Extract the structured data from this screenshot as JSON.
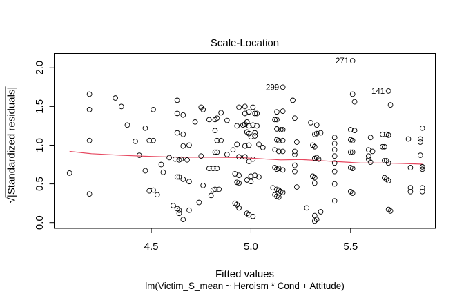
{
  "figure": {
    "title": "Scale-Location",
    "xlabel": "Fitted values",
    "xlabel_sub": "lm(Victim_S_mean ~ Heroism * Cond + Attitude)",
    "ylabel_radical": "√",
    "ylabel_text": "|Standardized residuals|"
  },
  "chart_data": {
    "type": "scatter",
    "title": "Scale-Location",
    "xlabel": "Fitted values",
    "model_caption": "lm(Victim_S_mean ~ Heroism * Cond + Attitude)",
    "ylabel": "√|Standardized residuals|",
    "grid": false,
    "legend": "none",
    "x_range": [
      4.013,
      5.925
    ],
    "y_range": [
      -0.074,
      2.185
    ],
    "x_ticks": {
      "values": [
        4.5,
        5.0,
        5.5
      ],
      "labels": [
        "4.5",
        "5.0",
        "5.5"
      ]
    },
    "y_ticks": {
      "values": [
        0.0,
        0.5,
        1.0,
        1.5,
        2.0
      ],
      "labels": [
        "0.0",
        "0.5",
        "1.0",
        "1.5",
        "2.0"
      ]
    },
    "point_style": {
      "shape": "open-circle",
      "color": "#000000"
    },
    "annotations": [
      {
        "text": "271",
        "x": 5.51,
        "y": 2.09
      },
      {
        "text": "299",
        "x": 5.16,
        "y": 1.75
      },
      {
        "text": "141",
        "x": 5.69,
        "y": 1.7
      }
    ],
    "smooth_line": {
      "name": "lowess smooth",
      "color": "#e6475f",
      "points": [
        [
          4.09,
          0.92
        ],
        [
          4.2,
          0.89
        ],
        [
          4.35,
          0.87
        ],
        [
          4.5,
          0.855
        ],
        [
          4.65,
          0.845
        ],
        [
          4.8,
          0.845
        ],
        [
          4.95,
          0.84
        ],
        [
          5.05,
          0.825
        ],
        [
          5.15,
          0.81
        ],
        [
          5.25,
          0.815
        ],
        [
          5.35,
          0.8
        ],
        [
          5.45,
          0.785
        ],
        [
          5.55,
          0.77
        ],
        [
          5.65,
          0.77
        ],
        [
          5.75,
          0.765
        ],
        [
          5.86,
          0.755
        ]
      ]
    },
    "points": [
      [
        4.19,
        1.66
      ],
      [
        4.32,
        1.61
      ],
      [
        4.35,
        1.5
      ],
      [
        4.19,
        1.46
      ],
      [
        4.38,
        1.26
      ],
      [
        4.47,
        1.22
      ],
      [
        4.19,
        1.06
      ],
      [
        4.42,
        1.05
      ],
      [
        4.49,
        1.06
      ],
      [
        4.44,
        0.87
      ],
      [
        4.09,
        0.64
      ],
      [
        4.47,
        0.67
      ],
      [
        4.19,
        0.37
      ],
      [
        4.49,
        0.41
      ],
      [
        4.63,
        1.58
      ],
      [
        4.51,
        1.46
      ],
      [
        4.63,
        1.41
      ],
      [
        4.66,
        1.39
      ],
      [
        4.75,
        1.49
      ],
      [
        4.76,
        1.46
      ],
      [
        4.72,
        1.3
      ],
      [
        4.79,
        1.33
      ],
      [
        4.82,
        1.33
      ],
      [
        4.83,
        1.35
      ],
      [
        4.85,
        1.42
      ],
      [
        4.88,
        1.32
      ],
      [
        4.94,
        1.49
      ],
      [
        4.97,
        1.5
      ],
      [
        4.97,
        1.41
      ],
      [
        4.93,
        1.25
      ],
      [
        4.96,
        1.26
      ],
      [
        4.97,
        1.27
      ],
      [
        4.63,
        1.16
      ],
      [
        4.66,
        1.14
      ],
      [
        4.82,
        1.19
      ],
      [
        4.98,
        1.17
      ],
      [
        4.83,
        1.06
      ],
      [
        4.51,
        1.06
      ],
      [
        4.85,
        1.06
      ],
      [
        4.66,
        0.99
      ],
      [
        4.69,
        1.0
      ],
      [
        4.93,
        1.01
      ],
      [
        4.97,
        0.99
      ],
      [
        4.82,
        0.91
      ],
      [
        4.83,
        0.91
      ],
      [
        4.88,
        0.88
      ],
      [
        4.91,
        0.94
      ],
      [
        4.94,
        0.85
      ],
      [
        4.97,
        0.85
      ],
      [
        4.59,
        0.84
      ],
      [
        4.62,
        0.82
      ],
      [
        4.64,
        0.81
      ],
      [
        4.65,
        0.82
      ],
      [
        4.68,
        0.81
      ],
      [
        4.75,
        0.86
      ],
      [
        4.55,
        0.75
      ],
      [
        4.56,
        0.65
      ],
      [
        4.79,
        0.7
      ],
      [
        4.81,
        0.7
      ],
      [
        4.83,
        0.7
      ],
      [
        4.92,
        0.63
      ],
      [
        4.94,
        0.61
      ],
      [
        4.63,
        0.59
      ],
      [
        4.64,
        0.59
      ],
      [
        4.66,
        0.56
      ],
      [
        4.69,
        0.53
      ],
      [
        4.93,
        0.52
      ],
      [
        4.94,
        0.51
      ],
      [
        4.76,
        0.48
      ],
      [
        4.51,
        0.42
      ],
      [
        4.53,
        0.36
      ],
      [
        4.81,
        0.42
      ],
      [
        4.82,
        0.43
      ],
      [
        4.84,
        0.43
      ],
      [
        4.8,
        0.35
      ],
      [
        4.74,
        0.26
      ],
      [
        4.61,
        0.22
      ],
      [
        4.63,
        0.18
      ],
      [
        4.64,
        0.16
      ],
      [
        4.64,
        0.12
      ],
      [
        4.66,
        0.04
      ],
      [
        4.69,
        0.16
      ],
      [
        4.92,
        0.25
      ],
      [
        4.93,
        0.23
      ],
      [
        4.94,
        0.19
      ],
      [
        4.98,
        0.12
      ],
      [
        5.21,
        1.58
      ],
      [
        5.01,
        1.49
      ],
      [
        4.99,
        1.43
      ],
      [
        5.02,
        1.41
      ],
      [
        5.03,
        1.41
      ],
      [
        5.13,
        1.43
      ],
      [
        5.16,
        1.44
      ],
      [
        5.22,
        1.35
      ],
      [
        5.12,
        1.33
      ],
      [
        5.13,
        1.33
      ],
      [
        4.98,
        1.3
      ],
      [
        4.99,
        1.25
      ],
      [
        5.01,
        1.26
      ],
      [
        5.03,
        1.25
      ],
      [
        5.3,
        1.29
      ],
      [
        5.33,
        1.26
      ],
      [
        5.13,
        1.21
      ],
      [
        5.15,
        1.2
      ],
      [
        5.16,
        1.2
      ],
      [
        4.99,
        1.15
      ],
      [
        5.02,
        1.16
      ],
      [
        5.32,
        1.14
      ],
      [
        5.33,
        1.15
      ],
      [
        5.35,
        1.16
      ],
      [
        5.42,
        1.1
      ],
      [
        5.13,
        1.07
      ],
      [
        5.14,
        1.06
      ],
      [
        5.16,
        1.06
      ],
      [
        5.23,
        1.04
      ],
      [
        5.0,
        1.11
      ],
      [
        5.02,
        1.12
      ],
      [
        4.99,
        1.0
      ],
      [
        5.04,
        1.01
      ],
      [
        5.06,
        0.97
      ],
      [
        5.12,
        0.94
      ],
      [
        5.14,
        0.92
      ],
      [
        5.16,
        0.92
      ],
      [
        5.22,
        0.92
      ],
      [
        5.22,
        0.88
      ],
      [
        5.31,
        1.0
      ],
      [
        5.32,
        0.98
      ],
      [
        5.42,
        1.02
      ],
      [
        5.42,
        0.94
      ],
      [
        5.42,
        0.86
      ],
      [
        5.42,
        0.77
      ],
      [
        5.42,
        0.66
      ],
      [
        5.42,
        0.5
      ],
      [
        4.99,
        0.79
      ],
      [
        5.01,
        0.82
      ],
      [
        5.32,
        0.83
      ],
      [
        5.33,
        0.84
      ],
      [
        5.34,
        0.82
      ],
      [
        5.12,
        0.71
      ],
      [
        5.13,
        0.69
      ],
      [
        5.14,
        0.7
      ],
      [
        5.16,
        0.68
      ],
      [
        5.22,
        0.74
      ],
      [
        5.22,
        0.66
      ],
      [
        5.0,
        0.6
      ],
      [
        5.02,
        0.61
      ],
      [
        5.04,
        0.59
      ],
      [
        4.98,
        0.55
      ],
      [
        5.0,
        0.53
      ],
      [
        5.31,
        0.6
      ],
      [
        5.32,
        0.58
      ],
      [
        5.32,
        0.51
      ],
      [
        5.23,
        0.46
      ],
      [
        5.11,
        0.45
      ],
      [
        5.13,
        0.43
      ],
      [
        5.14,
        0.42
      ],
      [
        5.15,
        0.4
      ],
      [
        5.12,
        0.36
      ],
      [
        5.13,
        0.34
      ],
      [
        5.14,
        0.33
      ],
      [
        5.16,
        0.39
      ],
      [
        5.28,
        0.19
      ],
      [
        5.35,
        0.14
      ],
      [
        5.32,
        0.09
      ],
      [
        5.33,
        0.04
      ],
      [
        5.32,
        0.02
      ],
      [
        4.99,
        0.1
      ],
      [
        5.01,
        0.08
      ],
      [
        5.42,
        0.28
      ],
      [
        5.51,
        1.66
      ],
      [
        5.52,
        1.56
      ],
      [
        5.7,
        1.52
      ],
      [
        5.5,
        1.2
      ],
      [
        5.52,
        1.19
      ],
      [
        5.5,
        1.07
      ],
      [
        5.51,
        1.06
      ],
      [
        5.6,
        1.1
      ],
      [
        5.66,
        1.14
      ],
      [
        5.68,
        1.14
      ],
      [
        5.69,
        1.13
      ],
      [
        5.86,
        1.22
      ],
      [
        5.79,
        1.08
      ],
      [
        5.85,
        1.08
      ],
      [
        5.85,
        1.04
      ],
      [
        5.5,
        0.91
      ],
      [
        5.51,
        0.91
      ],
      [
        5.59,
        0.94
      ],
      [
        5.66,
        0.98
      ],
      [
        5.67,
        0.98
      ],
      [
        5.61,
        0.92
      ],
      [
        5.59,
        0.86
      ],
      [
        5.59,
        0.82
      ],
      [
        5.6,
        0.78
      ],
      [
        5.85,
        0.87
      ],
      [
        5.67,
        0.8
      ],
      [
        5.68,
        0.8
      ],
      [
        5.69,
        0.77
      ],
      [
        5.5,
        0.71
      ],
      [
        5.51,
        0.7
      ],
      [
        5.8,
        0.71
      ],
      [
        5.86,
        0.72
      ],
      [
        5.86,
        0.69
      ],
      [
        5.67,
        0.58
      ],
      [
        5.68,
        0.56
      ],
      [
        5.69,
        0.54
      ],
      [
        5.5,
        0.4
      ],
      [
        5.51,
        0.38
      ],
      [
        5.8,
        0.45
      ],
      [
        5.8,
        0.4
      ],
      [
        5.86,
        0.45
      ],
      [
        5.86,
        0.4
      ],
      [
        5.69,
        0.17
      ],
      [
        5.7,
        0.15
      ]
    ]
  }
}
